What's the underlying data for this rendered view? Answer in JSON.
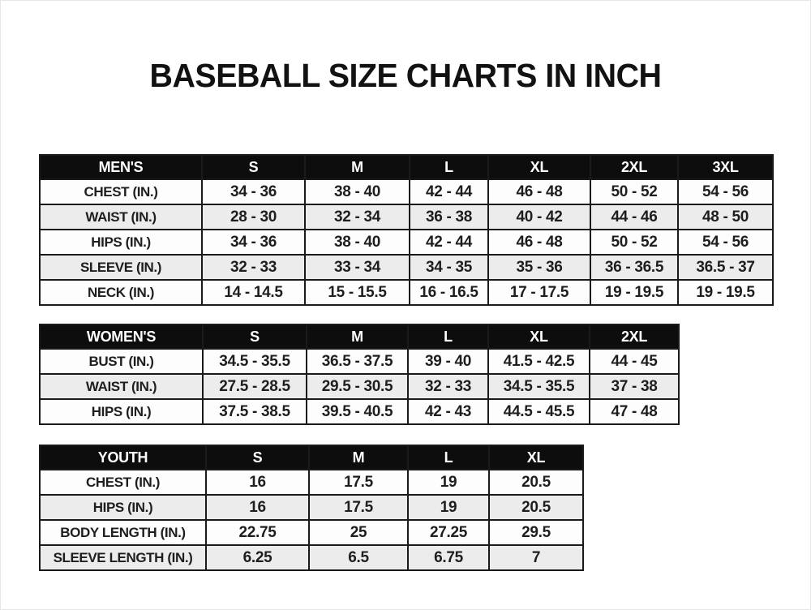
{
  "page": {
    "title": "BASEBALL SIZE CHARTS IN INCH"
  },
  "colors": {
    "header_bg": "#0d0d0d",
    "header_text": "#ffffff",
    "row_bg": "#fdfdfd",
    "row_alt_bg": "#ececec",
    "border": "#1a1a1a",
    "title_text": "#121212"
  },
  "tables": [
    {
      "name": "mens",
      "header": [
        "MEN'S",
        "S",
        "M",
        "L",
        "XL",
        "2XL",
        "3XL"
      ],
      "rows": [
        [
          "CHEST (IN.)",
          "34 - 36",
          "38 - 40",
          "42 - 44",
          "46 - 48",
          "50 - 52",
          "54 - 56"
        ],
        [
          "WAIST (IN.)",
          "28 - 30",
          "32 - 34",
          "36 - 38",
          "40 - 42",
          "44 - 46",
          "48 - 50"
        ],
        [
          "HIPS (IN.)",
          "34 - 36",
          "38 - 40",
          "42 - 44",
          "46 - 48",
          "50 - 52",
          "54 - 56"
        ],
        [
          "SLEEVE (IN.)",
          "32 - 33",
          "33 - 34",
          "34 - 35",
          "35 - 36",
          "36 - 36.5",
          "36.5 - 37"
        ],
        [
          "NECK (IN.)",
          "14 - 14.5",
          "15 - 15.5",
          "16 - 16.5",
          "17 - 17.5",
          "19 - 19.5",
          "19 - 19.5"
        ]
      ]
    },
    {
      "name": "womens",
      "header": [
        "WOMEN'S",
        "S",
        "M",
        "L",
        "XL",
        "2XL"
      ],
      "rows": [
        [
          "BUST (IN.)",
          "34.5 - 35.5",
          "36.5 - 37.5",
          "39 - 40",
          "41.5 - 42.5",
          "44 - 45"
        ],
        [
          "WAIST (IN.)",
          "27.5 - 28.5",
          "29.5 - 30.5",
          "32 - 33",
          "34.5 - 35.5",
          "37 - 38"
        ],
        [
          "HIPS (IN.)",
          "37.5 - 38.5",
          "39.5 - 40.5",
          "42 - 43",
          "44.5 - 45.5",
          "47 - 48"
        ]
      ]
    },
    {
      "name": "youth",
      "header": [
        "YOUTH",
        "S",
        "M",
        "L",
        "XL"
      ],
      "rows": [
        [
          "CHEST (IN.)",
          "16",
          "17.5",
          "19",
          "20.5"
        ],
        [
          "HIPS (IN.)",
          "16",
          "17.5",
          "19",
          "20.5"
        ],
        [
          "BODY LENGTH (IN.)",
          "22.75",
          "25",
          "27.25",
          "29.5"
        ],
        [
          "SLEEVE LENGTH (IN.)",
          "6.25",
          "6.5",
          "6.75",
          "7"
        ]
      ]
    }
  ]
}
